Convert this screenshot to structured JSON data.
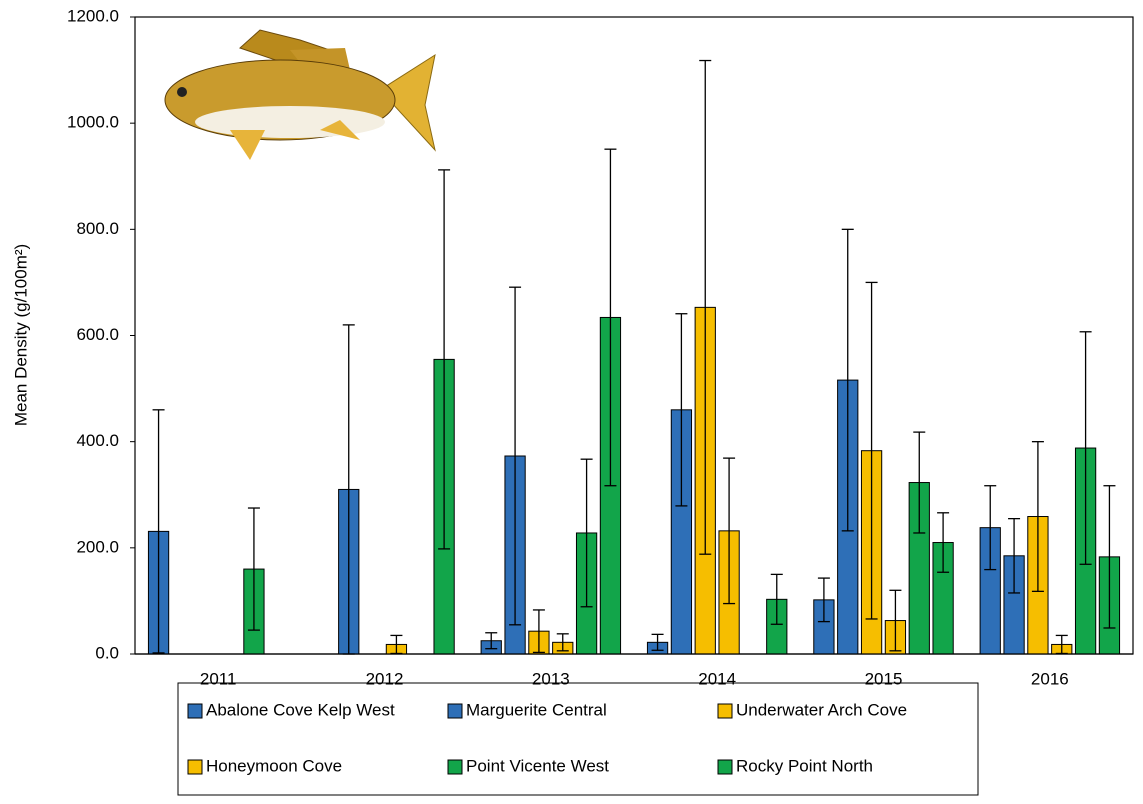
{
  "chart_data": {
    "type": "bar",
    "ylabel": "Mean Density (g/100m²)",
    "categories": [
      "2011",
      "2012",
      "2013",
      "2014",
      "2015",
      "2016"
    ],
    "series": [
      {
        "name": "Abalone Cove Kelp West",
        "color": "#2e6fb7",
        "values": [
          231,
          0,
          25,
          22,
          102,
          238
        ],
        "errors": [
          229,
          null,
          15,
          15,
          41,
          79
        ]
      },
      {
        "name": "Marguerite Central",
        "color": "#2e6fb7",
        "values": [
          0,
          310,
          373,
          460,
          516,
          185
        ],
        "errors": [
          null,
          310,
          318,
          181,
          284,
          70
        ]
      },
      {
        "name": "Underwater Arch Cove",
        "color": "#f6be00",
        "values": [
          0,
          0,
          43,
          653,
          383,
          259
        ],
        "errors": [
          null,
          null,
          40,
          465,
          317,
          141
        ]
      },
      {
        "name": "Honeymoon Cove",
        "color": "#f6be00",
        "values": [
          0,
          18,
          22,
          232,
          63,
          18
        ],
        "errors": [
          null,
          17,
          16,
          137,
          57,
          17
        ]
      },
      {
        "name": "Point Vicente West",
        "color": "#12a54a",
        "values": [
          160,
          0,
          228,
          0,
          323,
          388
        ],
        "errors": [
          115,
          null,
          139,
          null,
          95,
          219
        ]
      },
      {
        "name": "Rocky Point North",
        "color": "#12a54a",
        "values": [
          0,
          555,
          634,
          103,
          210,
          183
        ],
        "errors": [
          null,
          357,
          317,
          47,
          56,
          134
        ]
      }
    ],
    "ylim": [
      0,
      1200
    ],
    "yticks": [
      {
        "value": 0,
        "label": "0.0"
      },
      {
        "value": 200,
        "label": "200.0"
      },
      {
        "value": 400,
        "label": "400.0"
      },
      {
        "value": 600,
        "label": "600.0"
      },
      {
        "value": 800,
        "label": "800.0"
      },
      {
        "value": 1000,
        "label": "1000.0"
      },
      {
        "value": 1200,
        "label": "1200.0"
      }
    ],
    "grid": false
  }
}
